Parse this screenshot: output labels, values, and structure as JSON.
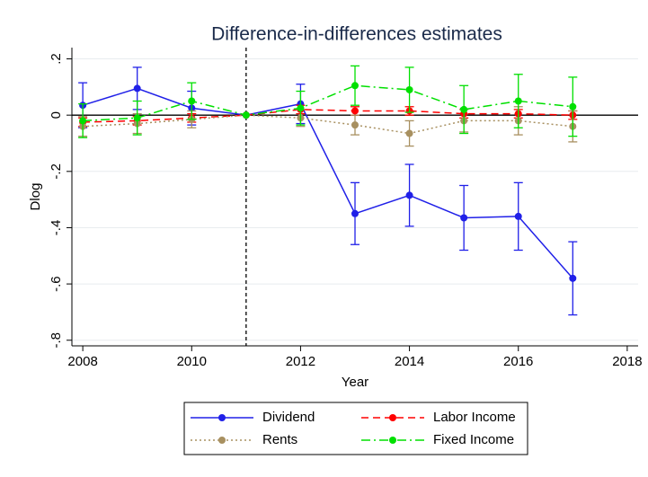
{
  "chart_data": {
    "type": "line",
    "title": "Difference-in-differences estimates",
    "x_label": "Year",
    "y_label": "Dlog",
    "x": [
      2008,
      2009,
      2010,
      2011,
      2012,
      2013,
      2014,
      2015,
      2016,
      2017
    ],
    "xlim": [
      2007.8,
      2018.2
    ],
    "xticks": [
      2008,
      2010,
      2012,
      2014,
      2016,
      2018
    ],
    "ylim": [
      -0.82,
      0.24
    ],
    "yticks": [
      {
        "value": 0.2,
        "label": ".2"
      },
      0,
      {
        "value": -0.2,
        "label": "-.2"
      },
      {
        "value": -0.4,
        "label": "-.4"
      },
      {
        "value": -0.6,
        "label": "-.6"
      },
      {
        "value": -0.8,
        "label": "-.8"
      }
    ],
    "grid": true,
    "vline": 2011,
    "hline": 0,
    "series": [
      {
        "name": "Dividend",
        "color": "#2020e8",
        "line_style": "solid",
        "values": [
          0.035,
          0.095,
          0.025,
          0,
          0.04,
          -0.35,
          -0.285,
          -0.365,
          -0.36,
          -0.58
        ],
        "errors": [
          0.08,
          0.075,
          0.06,
          null,
          0.07,
          0.11,
          0.11,
          0.115,
          0.12,
          0.13
        ]
      },
      {
        "name": "Labor Income",
        "color": "#ff0000",
        "line_style": "dashed",
        "values": [
          -0.025,
          -0.02,
          -0.01,
          0,
          0.02,
          0.015,
          0.015,
          0.005,
          0.005,
          0.0
        ],
        "errors": [
          0.015,
          0.015,
          0.015,
          null,
          0.015,
          0.015,
          0.015,
          0.015,
          0.015,
          0.015
        ]
      },
      {
        "name": "Rents",
        "color": "#a89060",
        "line_style": "dotted",
        "values": [
          -0.04,
          -0.03,
          -0.015,
          0,
          -0.01,
          -0.035,
          -0.065,
          -0.02,
          -0.02,
          -0.04
        ],
        "errors": [
          0.035,
          0.035,
          0.03,
          null,
          0.03,
          0.035,
          0.045,
          0.04,
          0.05,
          0.055
        ]
      },
      {
        "name": "Fixed Income",
        "color": "#00e000",
        "line_style": "dashdot",
        "values": [
          -0.02,
          -0.01,
          0.05,
          0,
          0.025,
          0.105,
          0.09,
          0.02,
          0.05,
          0.03
        ],
        "errors": [
          0.06,
          0.06,
          0.065,
          null,
          0.06,
          0.07,
          0.08,
          0.085,
          0.095,
          0.105
        ]
      }
    ]
  }
}
